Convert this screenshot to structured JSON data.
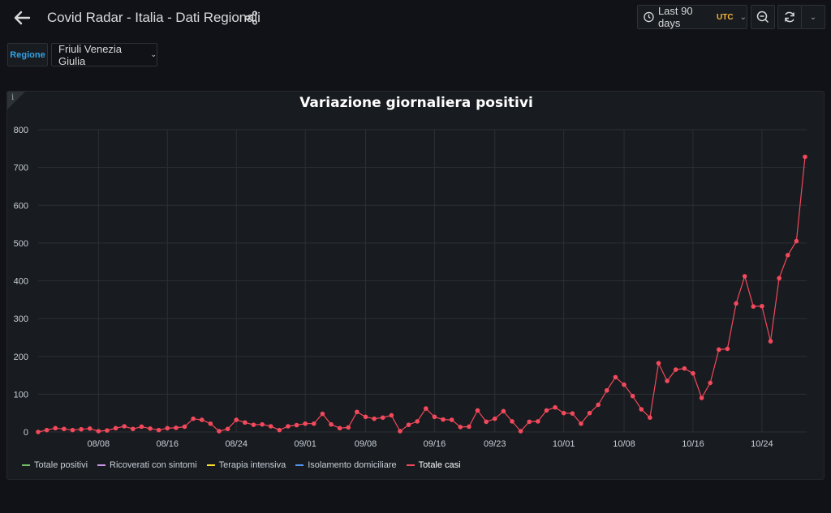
{
  "header": {
    "title": "Covid Radar - Italia - Dati Regionali",
    "time_range": "Last 90 days",
    "timezone": "UTC"
  },
  "variables": {
    "label": "Regione",
    "value": "Friuli Venezia Giulia"
  },
  "panel": {
    "info_glyph": "i",
    "title": "Variazione giornaliera positivi"
  },
  "colors": {
    "background": "#111217",
    "panel": "#181b1f",
    "totale_casi": "#f2495c",
    "totale_positivi": "#73bf69",
    "ricoverati": "#ca95e5",
    "terapia": "#fade2a",
    "isolamento": "#5794f2",
    "accent": "#33a2e5",
    "utc": "#f5b73d"
  },
  "chart_data": {
    "type": "line",
    "title": "Variazione giornaliera positivi",
    "ylim": [
      0,
      800
    ],
    "y_ticks": [
      0,
      100,
      200,
      300,
      400,
      500,
      600,
      700,
      800
    ],
    "x_ticks": [
      "08/08",
      "08/16",
      "08/24",
      "09/01",
      "09/08",
      "09/16",
      "09/23",
      "10/01",
      "10/08",
      "10/16",
      "10/24"
    ],
    "x_tick_day_index": [
      7,
      15,
      23,
      31,
      38,
      46,
      53,
      61,
      68,
      76,
      84
    ],
    "start_date": "08/01",
    "grid": true,
    "legend_position": "bottom-left",
    "series": [
      {
        "name": "Totale positivi",
        "color": "#73bf69",
        "values": []
      },
      {
        "name": "Ricoverati con sintomi",
        "color": "#ca95e5",
        "values": []
      },
      {
        "name": "Terapia intensiva",
        "color": "#fade2a",
        "values": []
      },
      {
        "name": "Isolamento domiciliare",
        "color": "#5794f2",
        "values": []
      },
      {
        "name": "Totale casi",
        "color": "#f2495c",
        "values": [
          0,
          5,
          10,
          8,
          5,
          7,
          9,
          2,
          4,
          10,
          15,
          8,
          14,
          9,
          5,
          10,
          11,
          14,
          35,
          32,
          22,
          2,
          8,
          32,
          25,
          19,
          20,
          15,
          5,
          15,
          18,
          22,
          22,
          48,
          20,
          10,
          12,
          53,
          40,
          35,
          38,
          44,
          2,
          19,
          28,
          62,
          40,
          33,
          32,
          13,
          14,
          57,
          27,
          35,
          55,
          28,
          2,
          27,
          28,
          57,
          65,
          50,
          49,
          22,
          50,
          72,
          110,
          145,
          125,
          95,
          60,
          38,
          182,
          135,
          165,
          168,
          155,
          90,
          130,
          218,
          220,
          340,
          412,
          332,
          333,
          240,
          407,
          468,
          505,
          728
        ]
      }
    ]
  }
}
